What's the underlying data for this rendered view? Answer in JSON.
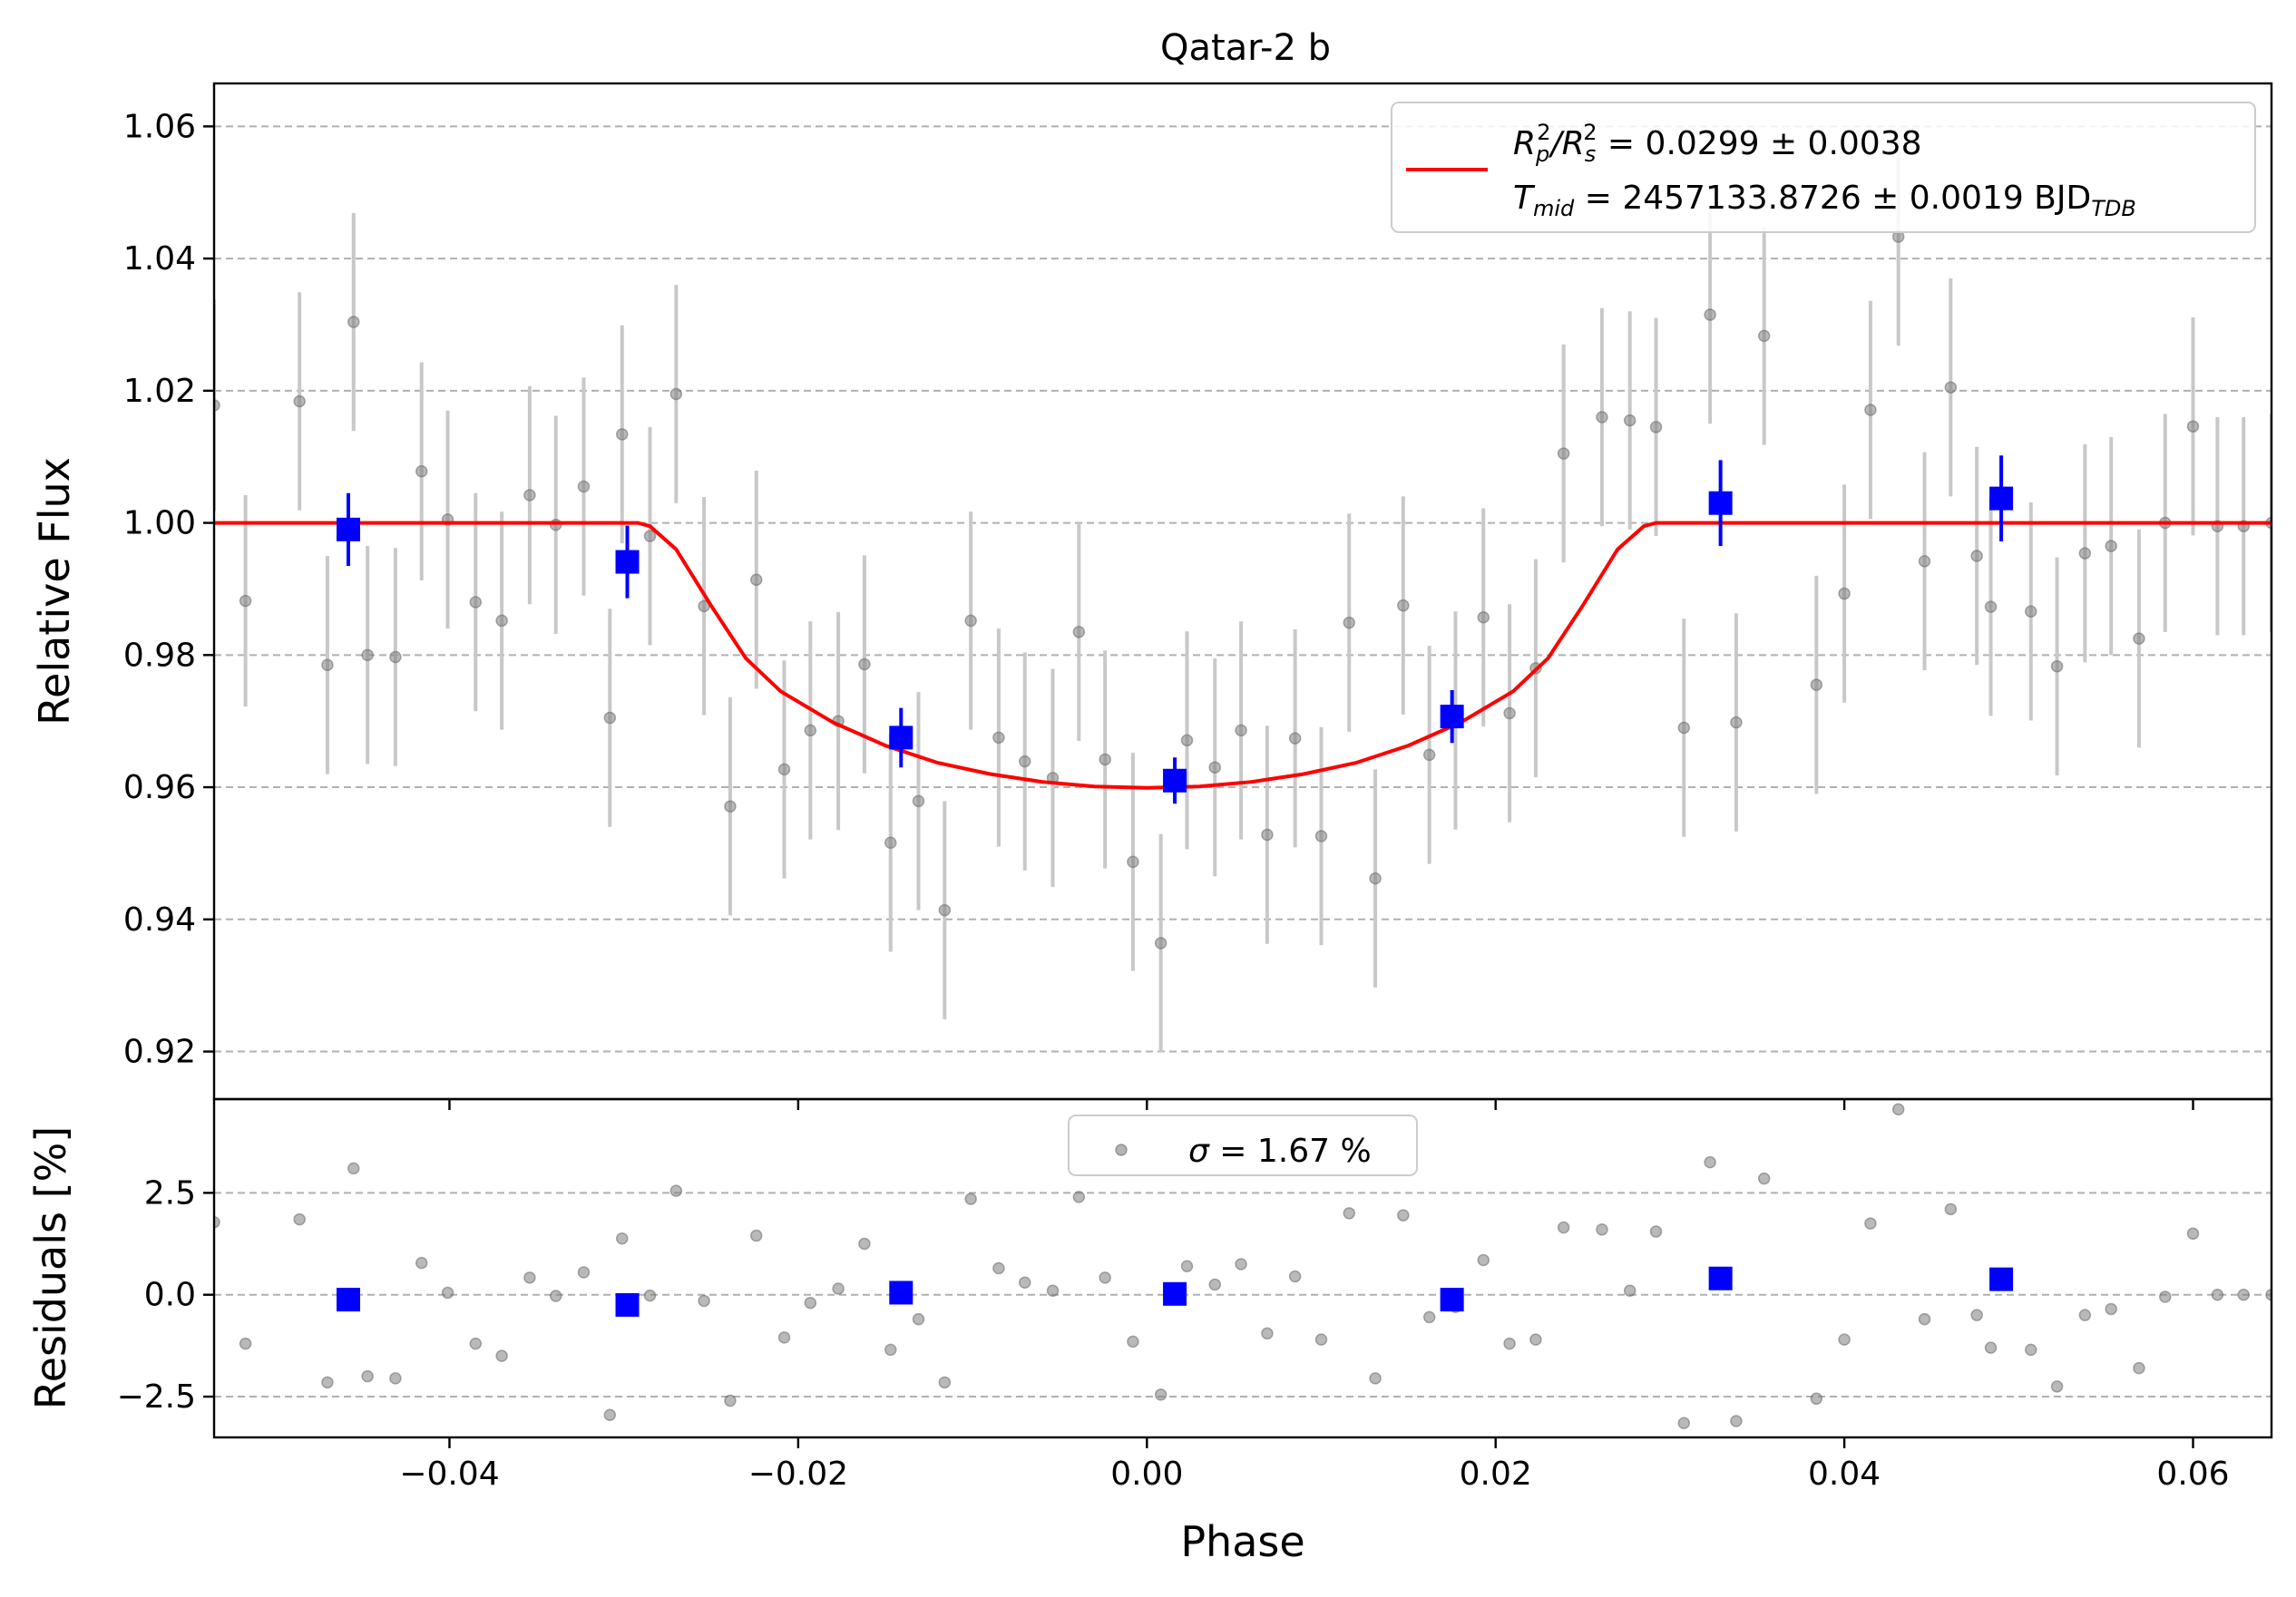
{
  "chart_data": {
    "type": "scatter",
    "title": "Qatar-2 b",
    "xlabel": "Phase",
    "xlim": [
      -0.0535,
      0.0645
    ],
    "xticks": [
      -0.04,
      -0.02,
      0.0,
      0.02,
      0.04,
      0.06
    ],
    "xtick_labels": [
      "−0.04",
      "−0.02",
      "0.00",
      "0.02",
      "0.04",
      "0.06"
    ],
    "colors": {
      "raw": "#808080",
      "raw_errorbar": "#c8c8c8",
      "binned": "#0000ff",
      "model": "#ff0000"
    },
    "top_panel": {
      "ylabel": "Relative Flux",
      "ylim": [
        0.9128,
        1.0665
      ],
      "yticks": [
        0.92,
        0.94,
        0.96,
        0.98,
        1.0,
        1.02,
        1.04,
        1.06
      ],
      "ytick_labels": [
        "0.92",
        "0.94",
        "0.96",
        "0.98",
        "1.00",
        "1.02",
        "1.04",
        "1.06"
      ],
      "grid": "horizontal dashed",
      "legend": {
        "placement": "upper right",
        "line1_pre": "R",
        "line1_sub1": "p",
        "line1_sup1": "2",
        "line1_mid": "/R",
        "line1_sub2": "s",
        "line1_sup2": "2",
        "line1_post": " = 0.0299 ± 0.0038",
        "line2_pre": "T",
        "line2_sub": "mid",
        "line2_post": " = 2457133.8726 ± 0.0019 BJD",
        "line2_unit_sub": "TDB"
      },
      "model": {
        "name": "transit model",
        "depth": 0.0299,
        "t_mid_phase": 0.0,
        "x": [
          -0.0535,
          -0.0292,
          -0.0285,
          -0.027,
          -0.025,
          -0.023,
          -0.021,
          -0.018,
          -0.015,
          -0.012,
          -0.009,
          -0.006,
          -0.003,
          0.0,
          0.003,
          0.006,
          0.009,
          0.012,
          0.015,
          0.018,
          0.021,
          0.023,
          0.025,
          0.027,
          0.0285,
          0.0292,
          0.0645
        ],
        "y": [
          1.0,
          1.0,
          0.9995,
          0.996,
          0.9875,
          0.9795,
          0.9745,
          0.9698,
          0.9663,
          0.9637,
          0.962,
          0.9608,
          0.9601,
          0.9599,
          0.9601,
          0.9608,
          0.962,
          0.9637,
          0.9663,
          0.9698,
          0.9745,
          0.9795,
          0.9875,
          0.996,
          0.9995,
          1.0,
          1.0
        ]
      },
      "raw": {
        "x": [
          -0.0535,
          -0.0517,
          -0.0486,
          -0.047,
          -0.0455,
          -0.0447,
          -0.0431,
          -0.0416,
          -0.0401,
          -0.0385,
          -0.037,
          -0.0354,
          -0.0339,
          -0.0323,
          -0.0308,
          -0.0301,
          -0.0285,
          -0.027,
          -0.0254,
          -0.0239,
          -0.0224,
          -0.0208,
          -0.0193,
          -0.0177,
          -0.0162,
          -0.0147,
          -0.0131,
          -0.0116,
          -0.0101,
          -0.0085,
          -0.007,
          -0.0054,
          -0.0039,
          -0.0024,
          -0.0008,
          0.0008,
          0.0023,
          0.0039,
          0.0054,
          0.0069,
          0.0085,
          0.01,
          0.0116,
          0.0131,
          0.0147,
          0.0162,
          0.0177,
          0.0193,
          0.0208,
          0.0223,
          0.0239,
          0.0261,
          0.0277,
          0.0292,
          0.0308,
          0.0323,
          0.0338,
          0.0354,
          0.0384,
          0.04,
          0.0415,
          0.0431,
          0.0446,
          0.0461,
          0.0476,
          0.0484,
          0.0507,
          0.0522,
          0.0538,
          0.0553,
          0.0569,
          0.0584,
          0.06,
          0.0614,
          0.0629,
          0.0645
        ],
        "y": [
          1.0178,
          0.9882,
          1.0184,
          0.9785,
          1.0304,
          0.98,
          0.9797,
          1.0078,
          1.0005,
          0.988,
          0.9852,
          1.0042,
          0.9997,
          1.0055,
          0.9705,
          1.0134,
          0.998,
          1.0195,
          0.9874,
          0.9571,
          0.9914,
          0.9627,
          0.9686,
          0.97,
          0.9786,
          0.9516,
          0.9579,
          0.9414,
          0.9852,
          0.9675,
          0.9639,
          0.9614,
          0.9835,
          0.9642,
          0.9487,
          0.9364,
          0.9671,
          0.963,
          0.9686,
          0.9528,
          0.9674,
          0.9526,
          0.9849,
          0.9462,
          0.9875,
          0.9649,
          0.9701,
          0.9857,
          0.9712,
          0.978,
          1.0105,
          1.016,
          1.0155,
          1.0145,
          0.969,
          1.0315,
          0.9698,
          1.0283,
          0.9755,
          0.9893,
          1.0171,
          1.0433,
          0.9942,
          1.0205,
          0.995,
          0.9873,
          0.9866,
          0.9783,
          0.9954,
          0.9965,
          0.9825,
          1.0,
          1.0146,
          0.9995,
          0.9995,
          1.0
        ],
        "err": [
          0.016,
          0.016,
          0.0165,
          0.0165,
          0.0165,
          0.0165,
          0.0165,
          0.0165,
          0.0165,
          0.0165,
          0.0165,
          0.0165,
          0.0165,
          0.0165,
          0.0165,
          0.0165,
          0.0165,
          0.0165,
          0.0165,
          0.0165,
          0.0165,
          0.0165,
          0.0165,
          0.0165,
          0.0165,
          0.0165,
          0.0165,
          0.0165,
          0.0165,
          0.0165,
          0.0165,
          0.0165,
          0.0165,
          0.0165,
          0.0165,
          0.0165,
          0.0165,
          0.0165,
          0.0165,
          0.0165,
          0.0165,
          0.0165,
          0.0165,
          0.0165,
          0.0165,
          0.0165,
          0.0165,
          0.0165,
          0.0165,
          0.0165,
          0.0165,
          0.0165,
          0.0165,
          0.0165,
          0.0165,
          0.0165,
          0.0165,
          0.0165,
          0.0165,
          0.0165,
          0.0165,
          0.0165,
          0.0165,
          0.0165,
          0.0165,
          0.0165,
          0.0165,
          0.0165,
          0.0165,
          0.0165,
          0.0165,
          0.0165,
          0.0165,
          0.0165,
          0.0165,
          0.0165
        ]
      },
      "binned": {
        "x": [
          -0.0458,
          -0.0298,
          -0.0141,
          0.0016,
          0.0175,
          0.0329,
          0.049
        ],
        "y": [
          0.999,
          0.9941,
          0.9675,
          0.961,
          0.9707,
          1.003,
          1.0037
        ],
        "err": [
          0.0055,
          0.0055,
          0.0045,
          0.0035,
          0.004,
          0.0065,
          0.0065
        ]
      }
    },
    "bottom_panel": {
      "ylabel": "Residuals [%]",
      "ylim": [
        -3.5,
        4.8
      ],
      "yticks": [
        -2.5,
        0.0,
        2.5
      ],
      "ytick_labels": [
        "−2.5",
        "0.0",
        "2.5"
      ],
      "grid": "horizontal dashed",
      "legend": {
        "placement": "upper center",
        "sigma_symbol": "σ",
        "label_rest": " = 1.67 %"
      },
      "raw": {
        "x": [
          -0.0535,
          -0.0517,
          -0.0486,
          -0.047,
          -0.0455,
          -0.0447,
          -0.0431,
          -0.0416,
          -0.0401,
          -0.0385,
          -0.037,
          -0.0354,
          -0.0339,
          -0.0323,
          -0.0308,
          -0.0301,
          -0.0285,
          -0.027,
          -0.0254,
          -0.0239,
          -0.0224,
          -0.0208,
          -0.0193,
          -0.0177,
          -0.0162,
          -0.0147,
          -0.0131,
          -0.0116,
          -0.0101,
          -0.0085,
          -0.007,
          -0.0054,
          -0.0039,
          -0.0024,
          -0.0008,
          0.0008,
          0.0023,
          0.0039,
          0.0054,
          0.0069,
          0.0085,
          0.01,
          0.0116,
          0.0131,
          0.0147,
          0.0162,
          0.0177,
          0.0193,
          0.0208,
          0.0223,
          0.0239,
          0.0261,
          0.0277,
          0.0292,
          0.0308,
          0.0323,
          0.0338,
          0.0354,
          0.0384,
          0.04,
          0.0415,
          0.0431,
          0.0446,
          0.0461,
          0.0476,
          0.0484,
          0.0507,
          0.0522,
          0.0538,
          0.0553,
          0.0569,
          0.0584,
          0.06,
          0.0614,
          0.0629,
          0.0645
        ],
        "y": [
          1.78,
          -1.2,
          1.85,
          -2.15,
          3.1,
          -2.0,
          -2.05,
          0.78,
          0.05,
          -1.2,
          -1.5,
          0.42,
          -0.03,
          0.55,
          -2.95,
          1.38,
          -0.02,
          2.55,
          -0.15,
          -2.6,
          1.45,
          -1.05,
          -0.2,
          0.15,
          1.25,
          -1.35,
          -0.6,
          -2.15,
          2.35,
          0.65,
          0.3,
          0.1,
          2.4,
          0.42,
          -1.15,
          -2.45,
          0.7,
          0.25,
          0.75,
          -0.95,
          0.45,
          -1.1,
          2.0,
          -2.05,
          1.95,
          -0.55,
          -0.3,
          0.85,
          -1.2,
          -1.1,
          1.65,
          1.6,
          0.1,
          1.55,
          -3.15,
          3.25,
          -3.1,
          2.85,
          -2.55,
          -1.1,
          1.75,
          4.55,
          -0.6,
          2.1,
          -0.5,
          -1.3,
          -1.35,
          -2.25,
          -0.5,
          -0.35,
          -1.8,
          -0.05,
          1.5,
          0.0,
          0.0,
          0.0
        ]
      },
      "binned": {
        "x": [
          -0.0458,
          -0.0298,
          -0.0141,
          0.0016,
          0.0175,
          0.0329,
          0.049
        ],
        "y": [
          -0.12,
          -0.25,
          0.05,
          0.02,
          -0.12,
          0.4,
          0.38
        ]
      }
    }
  }
}
